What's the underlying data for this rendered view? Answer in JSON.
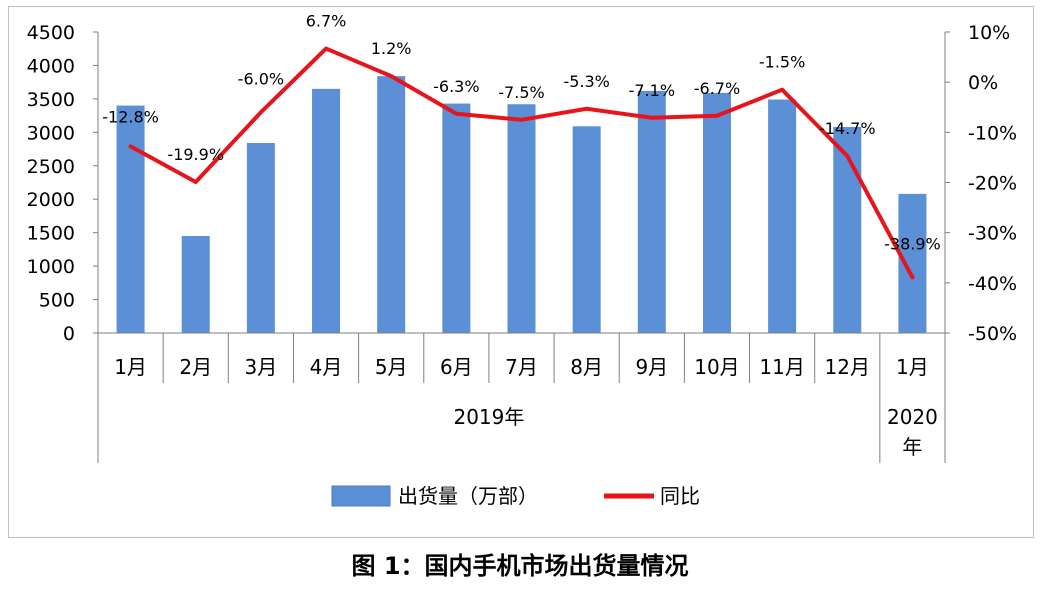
{
  "caption": "图 1：国内手机市场出货量情况",
  "chart_data": {
    "type": "bar+line",
    "categories": [
      "1月",
      "2月",
      "3月",
      "4月",
      "5月",
      "6月",
      "7月",
      "8月",
      "9月",
      "10月",
      "11月",
      "12月",
      "1月"
    ],
    "year_groups": [
      {
        "label": "2019年",
        "span": 12
      },
      {
        "label": "2020年",
        "span": 1
      }
    ],
    "series": [
      {
        "name": "出货量（万部）",
        "type": "bar",
        "axis": "left",
        "color": "#5b8fd6",
        "values": [
          3400,
          1450,
          2840,
          3650,
          3840,
          3430,
          3420,
          3090,
          3620,
          3590,
          3490,
          3080,
          2080
        ]
      },
      {
        "name": "同比",
        "type": "line",
        "axis": "right",
        "color": "#e8141b",
        "values": [
          -12.8,
          -19.9,
          -6.0,
          6.7,
          1.2,
          -6.3,
          -7.5,
          -5.3,
          -7.1,
          -6.7,
          -1.5,
          -14.7,
          -38.9
        ],
        "labels": [
          "-12.8%",
          "-19.9%",
          "-6.0%",
          "6.7%",
          "1.2%",
          "-6.3%",
          "-7.5%",
          "-5.3%",
          "-7.1%",
          "-6.7%",
          "-1.5%",
          "-14.7%",
          "-38.9%"
        ]
      }
    ],
    "left_axis": {
      "min": 0,
      "max": 4500,
      "step": 500,
      "ticks": [
        "0",
        "500",
        "1000",
        "1500",
        "2000",
        "2500",
        "3000",
        "3500",
        "4000",
        "4500"
      ]
    },
    "right_axis": {
      "min": -50,
      "max": 10,
      "step": 10,
      "ticks": [
        "-50%",
        "-40%",
        "-30%",
        "-20%",
        "-10%",
        "0%",
        "10%"
      ]
    },
    "legend_position": "bottom"
  }
}
